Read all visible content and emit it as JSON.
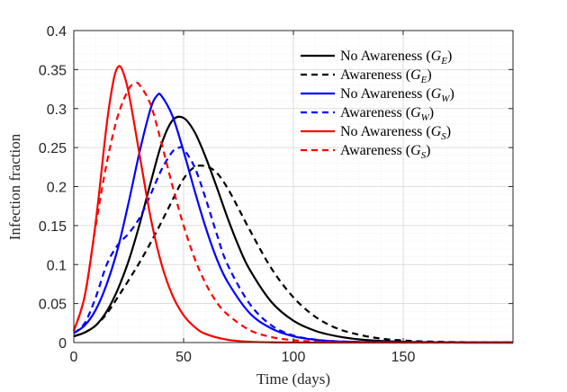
{
  "chart_data": {
    "type": "line",
    "title": "",
    "xlabel": "Time (days)",
    "ylabel": "Infection fraction",
    "xlim": [
      0,
      200
    ],
    "ylim": [
      0,
      0.4
    ],
    "xticks": [
      "0",
      "50",
      "100",
      "150"
    ],
    "yticks": [
      "0",
      "0.05",
      "0.1",
      "0.15",
      "0.2",
      "0.25",
      "0.3",
      "0.35",
      "0.4"
    ],
    "grid": true,
    "legend_position": "top-right",
    "series": [
      {
        "legend_prefix": "No Awareness (",
        "legend_G": "G",
        "legend_sub": "E",
        "legend_suffix": ")",
        "color": "#000000",
        "dash": "solid",
        "x": [
          0,
          5,
          10,
          15,
          20,
          25,
          30,
          35,
          40,
          45,
          50,
          55,
          60,
          65,
          70,
          75,
          80,
          90,
          100,
          110,
          120,
          130,
          140,
          150,
          160,
          180,
          200
        ],
        "y": [
          0.008,
          0.013,
          0.022,
          0.04,
          0.068,
          0.105,
          0.152,
          0.205,
          0.255,
          0.285,
          0.288,
          0.27,
          0.238,
          0.2,
          0.16,
          0.124,
          0.094,
          0.052,
          0.028,
          0.015,
          0.008,
          0.004,
          0.002,
          0.001,
          0.0006,
          0.0002,
          0.0001
        ]
      },
      {
        "legend_prefix": "Awareness (",
        "legend_G": "G",
        "legend_sub": "E",
        "legend_suffix": ")",
        "color": "#000000",
        "dash": "dashed",
        "x": [
          0,
          5,
          10,
          15,
          20,
          25,
          30,
          35,
          40,
          45,
          50,
          55,
          60,
          65,
          70,
          75,
          80,
          90,
          100,
          110,
          120,
          130,
          140,
          150,
          160,
          180,
          200
        ],
        "y": [
          0.008,
          0.013,
          0.022,
          0.037,
          0.058,
          0.08,
          0.103,
          0.128,
          0.155,
          0.183,
          0.21,
          0.225,
          0.226,
          0.218,
          0.198,
          0.172,
          0.145,
          0.095,
          0.058,
          0.033,
          0.018,
          0.01,
          0.005,
          0.0027,
          0.0014,
          0.0004,
          0.0001
        ]
      },
      {
        "legend_prefix": "No Awareness (",
        "legend_G": "G",
        "legend_sub": "W",
        "legend_suffix": ")",
        "color": "#0000ff",
        "dash": "solid",
        "x": [
          0,
          5,
          10,
          15,
          20,
          25,
          30,
          35,
          38,
          40,
          45,
          50,
          55,
          60,
          65,
          70,
          80,
          90,
          100,
          110,
          120,
          140,
          160,
          200
        ],
        "y": [
          0.012,
          0.022,
          0.042,
          0.075,
          0.12,
          0.18,
          0.245,
          0.3,
          0.317,
          0.316,
          0.29,
          0.245,
          0.195,
          0.148,
          0.108,
          0.078,
          0.038,
          0.018,
          0.008,
          0.0035,
          0.0015,
          0.0003,
          0.0001,
          0.0
        ]
      },
      {
        "legend_prefix": "Awareness (",
        "legend_G": "G",
        "legend_sub": "W",
        "legend_suffix": ")",
        "color": "#0000ff",
        "dash": "dashed",
        "x": [
          0,
          5,
          10,
          15,
          20,
          25,
          30,
          35,
          40,
          45,
          48,
          50,
          55,
          60,
          65,
          70,
          80,
          90,
          100,
          110,
          120,
          140,
          160,
          200
        ],
        "y": [
          0.012,
          0.025,
          0.058,
          0.1,
          0.125,
          0.14,
          0.16,
          0.19,
          0.222,
          0.245,
          0.25,
          0.248,
          0.225,
          0.185,
          0.14,
          0.1,
          0.05,
          0.022,
          0.009,
          0.0038,
          0.0015,
          0.0003,
          0.0001,
          0.0
        ]
      },
      {
        "legend_prefix": "No Awareness (",
        "legend_G": "G",
        "legend_sub": "S",
        "legend_suffix": ")",
        "color": "#ff0000",
        "dash": "solid",
        "x": [
          0,
          5,
          10,
          15,
          18,
          20,
          22,
          25,
          30,
          35,
          40,
          45,
          50,
          55,
          60,
          70,
          80,
          90,
          100,
          120,
          140,
          200
        ],
        "y": [
          0.015,
          0.06,
          0.155,
          0.28,
          0.335,
          0.353,
          0.35,
          0.32,
          0.24,
          0.16,
          0.1,
          0.06,
          0.035,
          0.02,
          0.011,
          0.0035,
          0.0011,
          0.0003,
          0.0001,
          0.0,
          0.0,
          0.0
        ]
      },
      {
        "legend_prefix": "Awareness (",
        "legend_G": "G",
        "legend_sub": "S",
        "legend_suffix": ")",
        "color": "#ff0000",
        "dash": "dashed",
        "x": [
          0,
          5,
          10,
          15,
          20,
          25,
          28,
          30,
          35,
          40,
          45,
          50,
          55,
          60,
          65,
          70,
          80,
          90,
          100,
          110,
          120,
          140,
          160,
          200
        ],
        "y": [
          0.015,
          0.06,
          0.15,
          0.23,
          0.29,
          0.325,
          0.332,
          0.33,
          0.305,
          0.255,
          0.2,
          0.15,
          0.108,
          0.076,
          0.052,
          0.036,
          0.016,
          0.007,
          0.003,
          0.0012,
          0.0005,
          0.0001,
          0.0,
          0.0
        ]
      }
    ]
  }
}
